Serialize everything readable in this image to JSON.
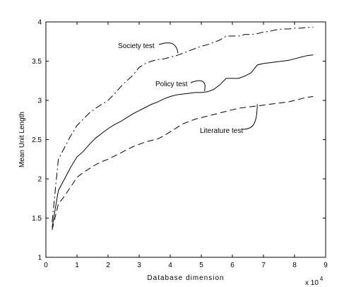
{
  "chart_data": {
    "type": "line",
    "title": "",
    "xlabel": "Database dimension",
    "ylabel": "Mean Unit Length",
    "x_multiplier_label": "x 10",
    "x_multiplier_exponent": "4",
    "xlim": [
      0,
      9
    ],
    "ylim": [
      1,
      4
    ],
    "xticks": [
      0,
      1,
      2,
      3,
      4,
      5,
      6,
      7,
      8,
      9
    ],
    "yticks": [
      1,
      1.5,
      2,
      2.5,
      3,
      3.5,
      4
    ],
    "xtick_labels": [
      "0",
      "1",
      "2",
      "3",
      "4",
      "5",
      "6",
      "7",
      "8",
      "9"
    ],
    "ytick_labels": [
      "1",
      "1.5",
      "2",
      "2.5",
      "3",
      "3.5",
      "4"
    ],
    "grid": false,
    "legend": "none",
    "series": [
      {
        "name": "Society test",
        "line_style": "dash-dot",
        "color": "#000000",
        "x": [
          0.2,
          0.4,
          0.6,
          0.8,
          1.0,
          1.2,
          1.4,
          1.6,
          1.8,
          2.0,
          2.2,
          2.4,
          2.6,
          2.8,
          3.0,
          3.2,
          3.4,
          3.6,
          3.8,
          4.0,
          4.2,
          4.4,
          4.6,
          4.8,
          5.0,
          5.2,
          5.4,
          5.6,
          5.8,
          6.0,
          6.2,
          6.4,
          6.6,
          6.8,
          7.0,
          7.2,
          7.4,
          7.6,
          7.8,
          8.0,
          8.2,
          8.4,
          8.6
        ],
        "y": [
          1.45,
          2.25,
          2.4,
          2.55,
          2.68,
          2.76,
          2.84,
          2.9,
          2.95,
          3.0,
          3.08,
          3.17,
          3.25,
          3.32,
          3.42,
          3.47,
          3.5,
          3.52,
          3.53,
          3.55,
          3.57,
          3.6,
          3.63,
          3.66,
          3.69,
          3.71,
          3.74,
          3.77,
          3.82,
          3.82,
          3.82,
          3.84,
          3.84,
          3.85,
          3.87,
          3.88,
          3.9,
          3.91,
          3.91,
          3.92,
          3.92,
          3.93,
          3.93
        ]
      },
      {
        "name": "Policy test",
        "line_style": "solid",
        "color": "#000000",
        "x": [
          0.2,
          0.4,
          0.6,
          0.8,
          1.0,
          1.2,
          1.4,
          1.6,
          1.8,
          2.0,
          2.2,
          2.4,
          2.6,
          2.8,
          3.0,
          3.2,
          3.4,
          3.6,
          3.8,
          4.0,
          4.2,
          4.4,
          4.6,
          4.8,
          5.0,
          5.2,
          5.4,
          5.6,
          5.8,
          6.0,
          6.2,
          6.4,
          6.6,
          6.8,
          7.0,
          7.2,
          7.4,
          7.6,
          7.8,
          8.0,
          8.2,
          8.4,
          8.6
        ],
        "y": [
          1.38,
          1.85,
          2.0,
          2.15,
          2.28,
          2.35,
          2.44,
          2.52,
          2.58,
          2.64,
          2.69,
          2.73,
          2.78,
          2.83,
          2.87,
          2.91,
          2.95,
          2.98,
          3.02,
          3.05,
          3.07,
          3.08,
          3.09,
          3.1,
          3.1,
          3.11,
          3.14,
          3.2,
          3.28,
          3.28,
          3.28,
          3.31,
          3.35,
          3.45,
          3.47,
          3.48,
          3.49,
          3.5,
          3.51,
          3.53,
          3.55,
          3.57,
          3.58
        ]
      },
      {
        "name": "Literature test",
        "line_style": "dashed",
        "color": "#000000",
        "x": [
          0.2,
          0.4,
          0.6,
          0.8,
          1.0,
          1.2,
          1.4,
          1.6,
          1.8,
          2.0,
          2.2,
          2.4,
          2.6,
          2.8,
          3.0,
          3.2,
          3.4,
          3.6,
          3.8,
          4.0,
          4.2,
          4.4,
          4.6,
          4.8,
          5.0,
          5.2,
          5.4,
          5.6,
          5.8,
          6.0,
          6.2,
          6.4,
          6.6,
          6.8,
          7.0,
          7.2,
          7.4,
          7.6,
          7.8,
          8.0,
          8.2,
          8.4,
          8.6
        ],
        "y": [
          1.35,
          1.68,
          1.78,
          1.9,
          2.02,
          2.08,
          2.13,
          2.18,
          2.22,
          2.25,
          2.29,
          2.33,
          2.37,
          2.41,
          2.44,
          2.47,
          2.49,
          2.51,
          2.55,
          2.6,
          2.65,
          2.7,
          2.73,
          2.76,
          2.78,
          2.8,
          2.82,
          2.84,
          2.86,
          2.88,
          2.9,
          2.91,
          2.92,
          2.93,
          2.94,
          2.95,
          2.96,
          2.97,
          2.98,
          3.0,
          3.02,
          3.04,
          3.05
        ]
      }
    ],
    "annotations": [
      {
        "text": "Society test",
        "anchor": [
          4.25,
          3.6
        ]
      },
      {
        "text": "Policy test",
        "anchor": [
          5.1,
          3.12
        ]
      },
      {
        "text": "Literature test",
        "anchor": [
          6.8,
          2.95
        ]
      }
    ]
  }
}
